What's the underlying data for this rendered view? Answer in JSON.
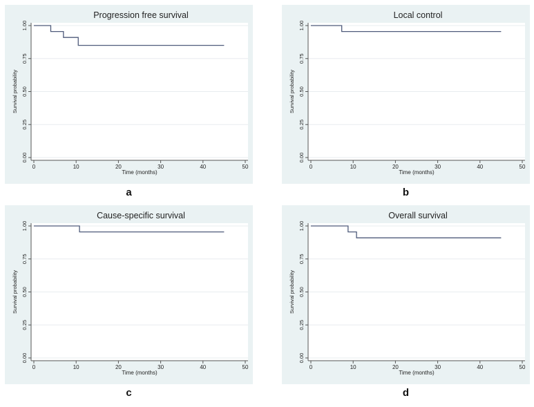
{
  "chart_data": [
    {
      "type": "line",
      "step": true,
      "panel_label": "a",
      "title": "Progression free survival",
      "xlabel": "Time (months)",
      "ylabel": "Survival probability",
      "xlim": [
        0,
        50
      ],
      "ylim": [
        0,
        1
      ],
      "xticks": [
        0,
        10,
        20,
        30,
        40,
        50
      ],
      "yticks": [
        "0.00",
        "0.25",
        "0.50",
        "0.75",
        "1.00"
      ],
      "grid": true,
      "series": [
        {
          "x": [
            0,
            4,
            7,
            10.5,
            45
          ],
          "y": [
            1.0,
            0.955,
            0.91,
            0.85,
            0.85
          ]
        }
      ]
    },
    {
      "type": "line",
      "step": true,
      "panel_label": "b",
      "title": "Local control",
      "xlabel": "Time (months)",
      "ylabel": "Survival probability",
      "xlim": [
        0,
        50
      ],
      "ylim": [
        0,
        1
      ],
      "xticks": [
        0,
        10,
        20,
        30,
        40,
        50
      ],
      "yticks": [
        "0.00",
        "0.25",
        "0.50",
        "0.75",
        "1.00"
      ],
      "grid": true,
      "series": [
        {
          "x": [
            0,
            7.3,
            45
          ],
          "y": [
            1.0,
            0.955,
            0.955
          ]
        }
      ]
    },
    {
      "type": "line",
      "step": true,
      "panel_label": "c",
      "title": "Cause-specific survival",
      "xlabel": "Time (months)",
      "ylabel": "Survival probability",
      "xlim": [
        0,
        50
      ],
      "ylim": [
        0,
        1
      ],
      "xticks": [
        0,
        10,
        20,
        30,
        40,
        50
      ],
      "yticks": [
        "0.00",
        "0.25",
        "0.50",
        "0.75",
        "1.00"
      ],
      "grid": true,
      "series": [
        {
          "x": [
            0,
            10.8,
            45
          ],
          "y": [
            1.0,
            0.955,
            0.955
          ]
        }
      ]
    },
    {
      "type": "line",
      "step": true,
      "panel_label": "d",
      "title": "Overall survival",
      "xlabel": "Time (months)",
      "ylabel": "Survival probability",
      "xlim": [
        0,
        50
      ],
      "ylim": [
        0,
        1
      ],
      "xticks": [
        0,
        10,
        20,
        30,
        40,
        50
      ],
      "yticks": [
        "0.00",
        "0.25",
        "0.50",
        "0.75",
        "1.00"
      ],
      "grid": true,
      "series": [
        {
          "x": [
            0,
            8.8,
            10.8,
            45
          ],
          "y": [
            1.0,
            0.955,
            0.91,
            0.91
          ]
        }
      ]
    }
  ],
  "colors": {
    "panel_background": "#eaf2f3",
    "plot_background": "#ffffff",
    "line": "#4e5a7a",
    "grid": "#e8ecef",
    "axis": "#555555",
    "text": "#222222"
  }
}
